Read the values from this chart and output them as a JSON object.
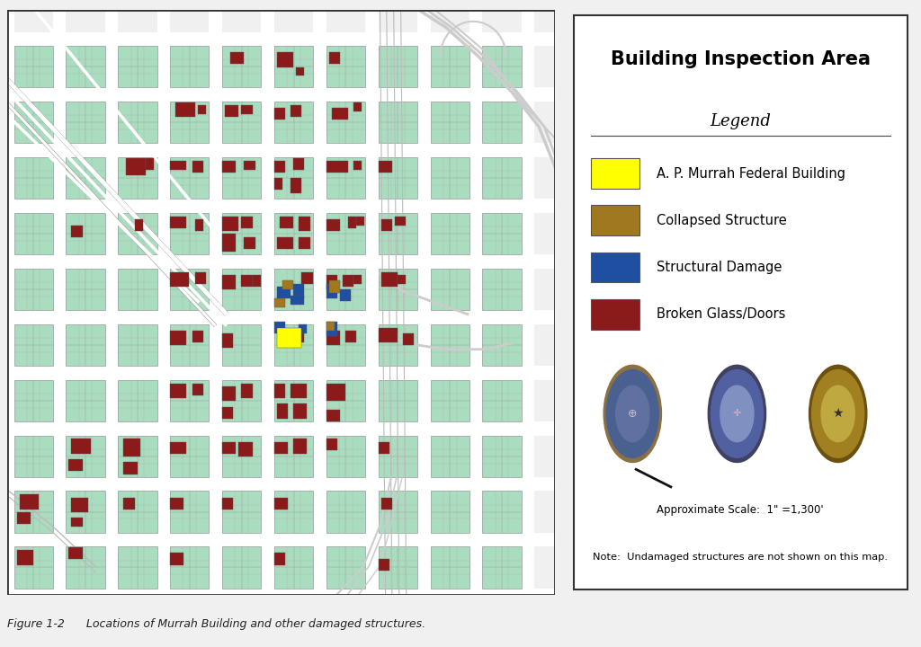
{
  "title": "Building Inspection Area",
  "legend_items": [
    {
      "label": "A. P. Murrah Federal Building",
      "color": "#FFFF00"
    },
    {
      "label": "Collapsed Structure",
      "color": "#A07820"
    },
    {
      "label": "Structural Damage",
      "color": "#1E4FA0"
    },
    {
      "label": "Broken Glass/Doors",
      "color": "#8B1A1A"
    }
  ],
  "scale_text": "Approximate Scale:  1\" =1,300'",
  "note_text": "Note:  Undamaged structures are not shown on this map.",
  "caption": "Figure 1-2      Locations of Murrah Building and other damaged structures.",
  "map_bg": "#AADDC0",
  "block_bg": "#AADDC0",
  "street_color": "#FFFFFF",
  "parcel_edge": "#888888",
  "outer_bg": "#F0F0F0"
}
